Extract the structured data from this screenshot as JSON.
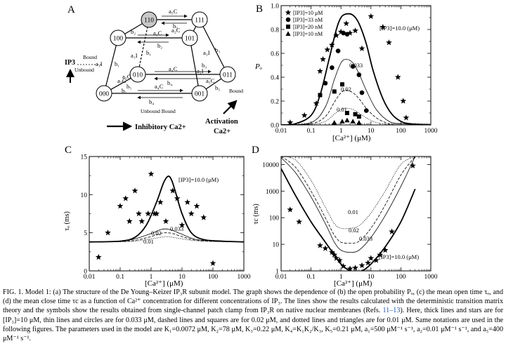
{
  "figure": {
    "panels": {
      "A": {
        "letter": "A",
        "nodes": [
          "110",
          "111",
          "100",
          "101",
          "010",
          "011",
          "000",
          "001"
        ],
        "rates": {
          "a5C_top": "a₅C",
          "b5_top": "b₅",
          "a2C_top": "a₂C",
          "b2_top": "b₂",
          "a2C_mid": "a₂C",
          "b2_mid": "b₂",
          "a1I": "a₁I",
          "b1": "b₁",
          "a3I": "a₃I",
          "b3": "b₃",
          "a1I_front": "a₁I",
          "b1_front": "b₁",
          "a4C": "a₄C",
          "b4": "b₄",
          "a5C_l": "a₅C",
          "b5_l": "b₅",
          "a5C_r": "a₅C",
          "b5_r": "b₅",
          "a5C_bot": "a₅C",
          "b5_bot": "b₅",
          "a3I_l": "a₃I",
          "b3_l": "b₃",
          "a4C_bot": "a₄C",
          "b4_bot": "b₄"
        },
        "ip3": "IP3",
        "bound": "Bound",
        "unbound": "Unbound",
        "unbound_bound": "Unbound  Bound",
        "bound2": "Bound",
        "inhibitory": "Inhibitory Ca2+",
        "activation1": "Activation",
        "activation2": "Ca2+"
      },
      "B": {
        "letter": "B",
        "ylabel": "Pₒ",
        "xlabel": "[Ca²⁺]  (μM)",
        "legend": [
          "[IP3]=10 μM",
          "[IP3]=33 nM",
          "[IP3]=20 nM",
          "[IP3]=10 nM"
        ],
        "curve_labels": [
          "[IP3]=10.0 (μM)",
          "0.033",
          "0.02",
          "0.01"
        ],
        "yticks": [
          "0.0",
          "0.2",
          "0.4",
          "0.6",
          "0.8",
          "1.0"
        ],
        "xticks": [
          "0.01",
          "0.1",
          "1",
          "10",
          "100",
          "1000"
        ]
      },
      "C": {
        "letter": "C",
        "ylabel": "τₒ (ms)",
        "xlabel": "[Ca²⁺]  (μM)",
        "curve_labels": [
          "[IP3]=10.0 (μM)",
          "0.033",
          "0.02",
          "0.01"
        ],
        "yticks": [
          "0",
          "5",
          "10",
          "15"
        ],
        "xticks": [
          "0.01",
          "0.1",
          "1",
          "10",
          "100",
          "1000"
        ]
      },
      "D": {
        "letter": "D",
        "ylabel": "τc (ms)",
        "xlabel": "[Ca²⁺]  (μM)",
        "curve_labels": [
          "[IP3]=10.0 (μM)",
          "0.033",
          "0.02",
          "0.01"
        ],
        "yticks": [
          "1",
          "10",
          "100",
          "1000",
          "10000"
        ],
        "xticks": [
          "0.01",
          "0.1",
          "1",
          "10",
          "100",
          "1000"
        ]
      }
    },
    "caption": {
      "part1": "FIG. 1. Model 1: (a) The structure of the De Young–Keizer IP₃R subunit model. The graph shows the dependence of (b) the open probability Pₒ, (c) the mean open time τₒ, and (d) the mean close time τc as a function of Ca²⁺ concentration for different concentrations of IP₃. The lines show the results calculated with the deterministic transition matrix theory and the symbols show the results obtained from single-channel patch clamp from IP₃R on native nuclear membranes (Refs. ",
      "refs": "11–13",
      "part2": "). Here, thick lines and stars are for [IP₃]=10  μM, thin lines and circles are for 0.033  μM, dashed lines and squares are for 0.02  μM, and dotted lines and triangles are for 0.01  μM. Same notations are used in the following figures. The parameters used in the model are K₁=0.0072  μM, K₂=78  μM, K₃=0.22  μM, K₄=K₁K₂/K₃, K₅=0.21  μM, a₁=500  μM⁻¹ s⁻¹, a₂=0.01  μM⁻¹ s⁻¹, and a₅=400  μM⁻¹ s⁻¹."
    }
  },
  "chart_data": [
    {
      "panel": "B",
      "type": "line",
      "xscale": "log",
      "xlim": [
        0.01,
        1000
      ],
      "ylim": [
        0.0,
        1.0
      ],
      "xlabel": "[Ca2+] (μM)",
      "ylabel": "Po",
      "series": [
        {
          "name": "[IP3]=10 μM",
          "style": "thick",
          "x": [
            0.01,
            0.03,
            0.1,
            0.2,
            0.4,
            0.7,
            1,
            1.5,
            2.5,
            4,
            7,
            12,
            25,
            50,
            100,
            200,
            1000
          ],
          "y": [
            0.0,
            0.01,
            0.08,
            0.25,
            0.55,
            0.8,
            0.9,
            0.93,
            0.92,
            0.85,
            0.68,
            0.45,
            0.22,
            0.09,
            0.03,
            0.01,
            0.0
          ]
        },
        {
          "name": "0.033",
          "style": "thin",
          "x": [
            0.01,
            0.1,
            0.3,
            0.6,
            1,
            1.5,
            2.5,
            4,
            7,
            15,
            40,
            100,
            1000
          ],
          "y": [
            0.0,
            0.02,
            0.15,
            0.38,
            0.52,
            0.55,
            0.52,
            0.43,
            0.29,
            0.13,
            0.03,
            0.01,
            0.0
          ]
        },
        {
          "name": "0.02",
          "style": "dashed",
          "x": [
            0.01,
            0.1,
            0.3,
            0.6,
            1,
            1.5,
            2.5,
            4,
            7,
            15,
            40,
            100,
            1000
          ],
          "y": [
            0.0,
            0.01,
            0.07,
            0.19,
            0.27,
            0.29,
            0.27,
            0.22,
            0.14,
            0.06,
            0.01,
            0.0,
            0.0
          ]
        },
        {
          "name": "0.01",
          "style": "dotted",
          "x": [
            0.01,
            0.1,
            0.3,
            0.6,
            1,
            1.5,
            2.5,
            4,
            7,
            15,
            40,
            100,
            1000
          ],
          "y": [
            0.0,
            0.005,
            0.03,
            0.09,
            0.13,
            0.14,
            0.13,
            0.1,
            0.06,
            0.02,
            0.005,
            0.0,
            0.0
          ]
        }
      ],
      "points": [
        {
          "series": "[IP3]=10 μM",
          "marker": "star",
          "x": [
            0.02,
            0.06,
            0.15,
            0.2,
            0.25,
            0.35,
            0.5,
            0.7,
            1,
            1.5,
            2,
            3,
            5,
            10,
            25,
            40,
            80,
            120,
            150
          ],
          "y": [
            0.02,
            0.08,
            0.18,
            0.45,
            0.55,
            0.63,
            0.67,
            0.75,
            0.78,
            0.85,
            0.77,
            0.79,
            0.64,
            0.91,
            0.82,
            0.69,
            0.4,
            0.2,
            0.06
          ]
        },
        {
          "series": "[IP3]=33 nM",
          "marker": "circle",
          "x": [
            0.3,
            0.5,
            0.8,
            1.2,
            1.6,
            2.5,
            4,
            5,
            7
          ],
          "y": [
            0.35,
            0.48,
            0.62,
            0.77,
            0.76,
            0.49,
            0.42,
            0.27,
            0.12
          ]
        },
        {
          "series": "[IP3]=20 nM",
          "marker": "square",
          "x": [
            0.2,
            0.6,
            1.1,
            1.6,
            3,
            4
          ],
          "y": [
            0.25,
            0.28,
            0.34,
            0.1,
            0.09,
            0.07
          ]
        },
        {
          "series": "[IP3]=10 nM",
          "marker": "triangle",
          "x": [
            0.6,
            1.1,
            1.6,
            2.5,
            4
          ],
          "y": [
            0.02,
            0.03,
            0.04,
            0.03,
            0.02
          ]
        }
      ]
    },
    {
      "panel": "C",
      "type": "line",
      "xscale": "log",
      "xlim": [
        0.01,
        1000
      ],
      "ylim": [
        0,
        15
      ],
      "xlabel": "[Ca2+] (μM)",
      "ylabel": "τo (ms)",
      "series": [
        {
          "name": "[IP3]=10.0 (μM)",
          "style": "thick",
          "x": [
            0.01,
            0.1,
            0.3,
            0.7,
            1.5,
            2.5,
            3.5,
            4.5,
            6,
            10,
            20,
            50,
            200,
            1000
          ],
          "y": [
            3.8,
            3.9,
            4.4,
            6.0,
            9.0,
            11.5,
            12.4,
            12.0,
            10.5,
            7.5,
            5.0,
            4.1,
            3.9,
            3.8
          ]
        },
        {
          "name": "0.033",
          "style": "thin",
          "x": [
            0.01,
            0.1,
            0.3,
            1,
            2,
            3,
            5,
            10,
            30,
            200,
            1000
          ],
          "y": [
            3.8,
            3.9,
            4.2,
            4.9,
            5.4,
            5.5,
            5.3,
            4.8,
            4.1,
            3.9,
            3.8
          ]
        },
        {
          "name": "0.02",
          "style": "dashed",
          "x": [
            0.01,
            0.1,
            0.3,
            1,
            2,
            3,
            5,
            10,
            30,
            200,
            1000
          ],
          "y": [
            3.8,
            3.85,
            4.0,
            4.5,
            4.9,
            5.0,
            4.9,
            4.5,
            4.0,
            3.85,
            3.8
          ]
        },
        {
          "name": "0.01",
          "style": "dotted",
          "x": [
            0.01,
            0.1,
            0.3,
            1,
            2,
            3,
            5,
            10,
            30,
            200,
            1000
          ],
          "y": [
            3.8,
            3.82,
            3.9,
            4.2,
            4.4,
            4.5,
            4.4,
            4.2,
            3.95,
            3.82,
            3.8
          ]
        }
      ],
      "points": [
        {
          "series": "[IP3]=10 μM",
          "marker": "star",
          "x": [
            0.02,
            0.04,
            0.1,
            0.15,
            0.2,
            0.3,
            0.4,
            0.5,
            0.8,
            1,
            1.3,
            1.5,
            2,
            3,
            5,
            7,
            10,
            15,
            20,
            30,
            50,
            100
          ],
          "y": [
            1.8,
            5.0,
            8.5,
            9.5,
            6.5,
            10.5,
            7.5,
            6.5,
            7.5,
            12.7,
            7.5,
            7.5,
            9.0,
            6.5,
            10.5,
            9.5,
            6.0,
            9.0,
            7.5,
            8.5,
            7.0,
            1.0
          ]
        }
      ]
    },
    {
      "panel": "D",
      "type": "line",
      "xscale": "log",
      "yscale": "log",
      "xlim": [
        0.01,
        1000
      ],
      "ylim": [
        1,
        20000
      ],
      "xlabel": "[Ca2+] (μM)",
      "ylabel": "τc (ms)",
      "series": [
        {
          "name": "[IP3]=10.0 (μM)",
          "style": "thick",
          "x": [
            0.01,
            0.03,
            0.1,
            0.3,
            0.6,
            1,
            2,
            3,
            5,
            10,
            30,
            100,
            300
          ],
          "y": [
            7000,
            700,
            70,
            12,
            4,
            1.8,
            0.9,
            0.8,
            1.0,
            1.8,
            8,
            70,
            1200
          ]
        },
        {
          "name": "0.033",
          "style": "thin",
          "x": [
            0.01,
            0.03,
            0.1,
            0.3,
            0.6,
            1,
            2,
            4,
            10,
            30,
            100,
            300
          ],
          "y": [
            18000,
            5000,
            600,
            60,
            12,
            6,
            5,
            6,
            18,
            120,
            1500,
            20000
          ]
        },
        {
          "name": "0.02",
          "style": "dashed",
          "x": [
            0.01,
            0.03,
            0.1,
            0.3,
            0.6,
            1,
            2,
            4,
            10,
            30,
            100,
            300
          ],
          "y": [
            20000,
            8000,
            1000,
            100,
            22,
            12,
            11,
            13,
            40,
            300,
            4000,
            20000
          ]
        },
        {
          "name": "0.01",
          "style": "dotted",
          "x": [
            0.01,
            0.03,
            0.1,
            0.3,
            0.6,
            1,
            2,
            4,
            10,
            30,
            100,
            300
          ],
          "y": [
            20000,
            15000,
            2500,
            250,
            60,
            40,
            40,
            50,
            150,
            1000,
            10000,
            20000
          ]
        }
      ],
      "points": [
        {
          "series": "[IP3]=10 μM",
          "marker": "star",
          "x": [
            0.02,
            0.04,
            0.2,
            0.3,
            0.5,
            0.6,
            0.7,
            0.9,
            1.2,
            2,
            3,
            5,
            8,
            10,
            15,
            20,
            30,
            50,
            250
          ],
          "y": [
            200,
            70,
            9,
            7,
            5,
            4,
            3,
            2.5,
            1.5,
            1.2,
            1.3,
            1.6,
            2,
            3,
            2.5,
            4,
            6,
            30,
            9000
          ]
        }
      ]
    }
  ]
}
